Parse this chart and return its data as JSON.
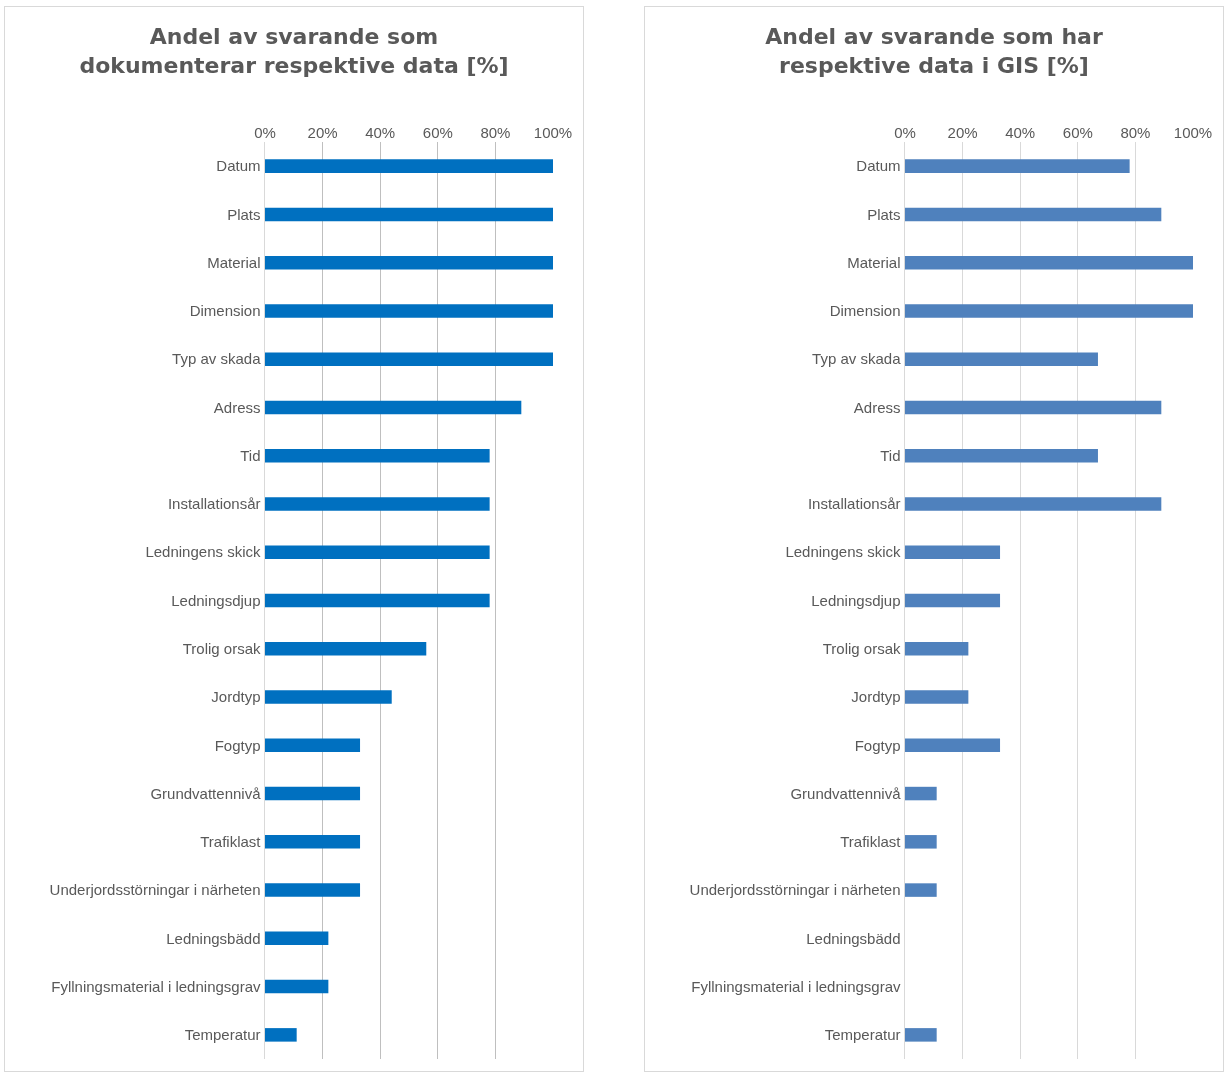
{
  "chart_data": [
    {
      "type": "bar",
      "orientation": "horizontal",
      "title": "Andel av svarande som dokumenterar respektive data [%]",
      "categories": [
        "Datum",
        "Plats",
        "Material",
        "Dimension",
        "Typ av skada",
        "Adress",
        "Tid",
        "Installationsår",
        "Ledningens skick",
        "Ledningsdjup",
        "Trolig orsak",
        "Jordtyp",
        "Fogtyp",
        "Grundvattennivå",
        "Trafiklast",
        "Underjordsstörningar i närheten",
        "Ledningsbädd",
        "Fyllningsmaterial i ledningsgrav",
        "Temperatur"
      ],
      "values": [
        100,
        100,
        100,
        100,
        100,
        89,
        78,
        78,
        78,
        78,
        56,
        44,
        33,
        33,
        33,
        33,
        22,
        22,
        11
      ],
      "color": "#0070c0",
      "xlim": [
        0,
        100
      ],
      "xticks": [
        {
          "value": 0,
          "label": "0%"
        },
        {
          "value": 20,
          "label": "20%"
        },
        {
          "value": 40,
          "label": "40%"
        },
        {
          "value": 60,
          "label": "60%"
        },
        {
          "value": 80,
          "label": "80%"
        },
        {
          "value": 100,
          "label": "100%"
        }
      ],
      "grid": "x"
    },
    {
      "type": "bar",
      "orientation": "horizontal",
      "title": "Andel av svarande som har respektive data i GIS [%]",
      "categories": [
        "Datum",
        "Plats",
        "Material",
        "Dimension",
        "Typ av skada",
        "Adress",
        "Tid",
        "Installationsår",
        "Ledningens skick",
        "Ledningsdjup",
        "Trolig orsak",
        "Jordtyp",
        "Fogtyp",
        "Grundvattennivå",
        "Trafiklast",
        "Underjordsstörningar i närheten",
        "Ledningsbädd",
        "Fyllningsmaterial i ledningsgrav",
        "Temperatur"
      ],
      "values": [
        78,
        89,
        100,
        100,
        67,
        89,
        67,
        89,
        33,
        33,
        22,
        22,
        33,
        11,
        11,
        11,
        0,
        0,
        11
      ],
      "color": "#4f81bd",
      "xlim": [
        0,
        100
      ],
      "xticks": [
        {
          "value": 0,
          "label": "0%"
        },
        {
          "value": 20,
          "label": "20%"
        },
        {
          "value": 40,
          "label": "40%"
        },
        {
          "value": 60,
          "label": "60%"
        },
        {
          "value": 80,
          "label": "80%"
        },
        {
          "value": 100,
          "label": "100%"
        }
      ],
      "grid": "x"
    }
  ]
}
